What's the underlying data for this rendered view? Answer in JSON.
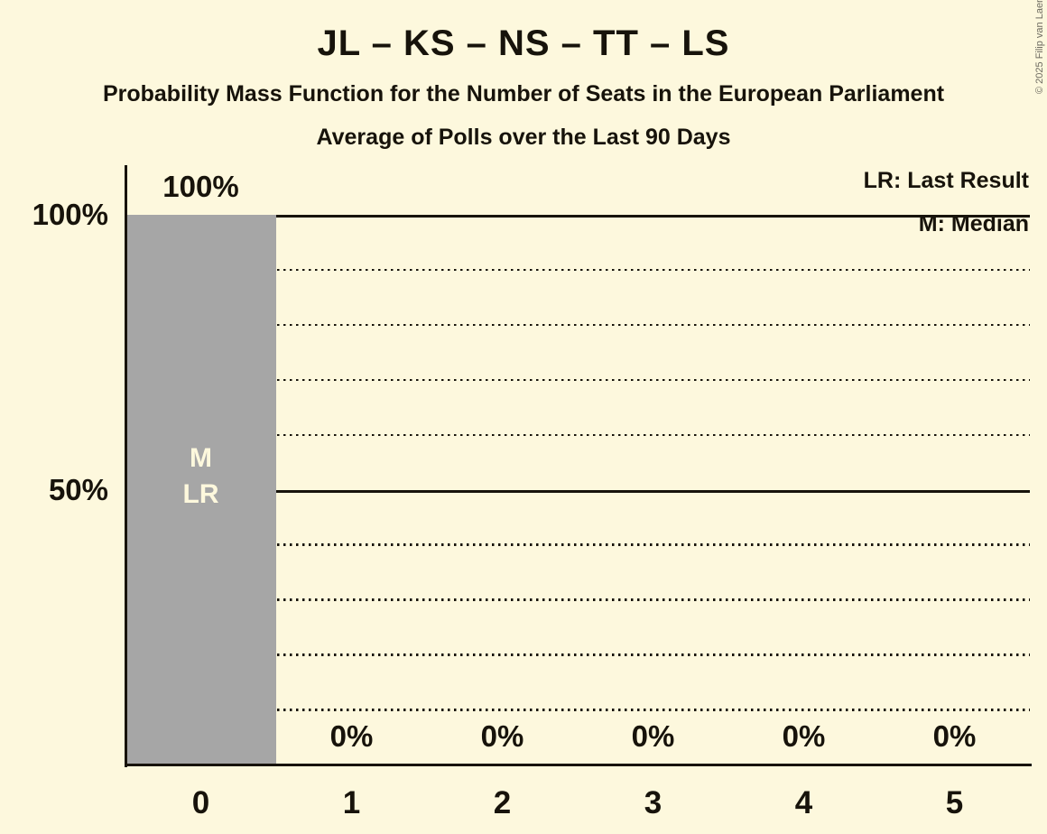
{
  "chart_data": {
    "type": "bar",
    "title": "JL – KS – NS – TT – LS",
    "subtitle": "Probability Mass Function for the Number of Seats in the European Parliament",
    "subtitle2": "Average of Polls over the Last 90 Days",
    "xlabel": "",
    "ylabel": "",
    "categories": [
      "0",
      "1",
      "2",
      "3",
      "4",
      "5"
    ],
    "values": [
      100,
      0,
      0,
      0,
      0,
      0
    ],
    "value_labels": [
      "100%",
      "0%",
      "0%",
      "0%",
      "0%",
      "0%"
    ],
    "ylim": [
      0,
      100
    ],
    "y_ticks": [
      {
        "label": "100%",
        "value": 100
      },
      {
        "label": "50%",
        "value": 50
      }
    ],
    "gridlines": {
      "solid": [
        100,
        50
      ],
      "dotted": [
        90,
        80,
        70,
        60,
        40,
        30,
        20,
        10
      ]
    },
    "bar_annotation": {
      "category": "0",
      "lines": [
        "M",
        "LR"
      ]
    },
    "legend": [
      {
        "label": "LR: Last Result"
      },
      {
        "label": "M: Median"
      }
    ],
    "legend_position": "top-right",
    "grid": true,
    "copyright": "© 2025 Filip van Laenen",
    "colors": {
      "background": "#fdf8dd",
      "bar": "#a6a6a6",
      "text": "#17130b",
      "bar_label": "#fdf8dd",
      "copyright": "#6d6a60"
    }
  }
}
